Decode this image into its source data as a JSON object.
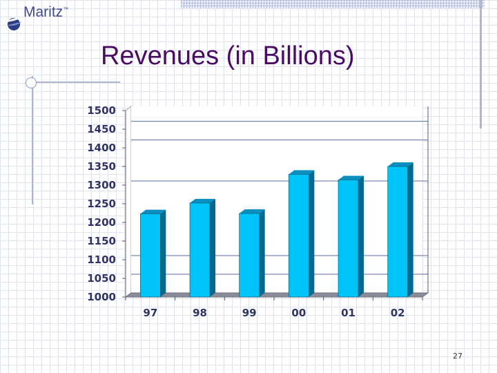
{
  "brand": {
    "name": "Maritz",
    "mark": "™",
    "logo": "maritz-swirl-logo"
  },
  "slide": {
    "title": "Revenues (in Billions)",
    "page_number": "27"
  },
  "colors": {
    "title": "#4b0a63",
    "bar_front": "#00c3f7",
    "bar_side": "#006b8e",
    "bar_top": "#0a8fbf",
    "axis_text": "#2f3463"
  },
  "chart_data": {
    "type": "bar",
    "title": "Revenues (in Billions)",
    "xlabel": "",
    "ylabel": "",
    "categories": [
      "97",
      "98",
      "99",
      "00",
      "01",
      "02"
    ],
    "values": [
      1223,
      1252,
      1224,
      1329,
      1314,
      1350
    ],
    "ylim": [
      1000,
      1500
    ],
    "yticks": [
      1000,
      1050,
      1100,
      1150,
      1200,
      1250,
      1300,
      1350,
      1400,
      1450,
      1500
    ],
    "gridlines": [
      1050,
      1100,
      1300,
      1410,
      1460
    ],
    "grid": true,
    "legend": "none",
    "style": "3d"
  }
}
